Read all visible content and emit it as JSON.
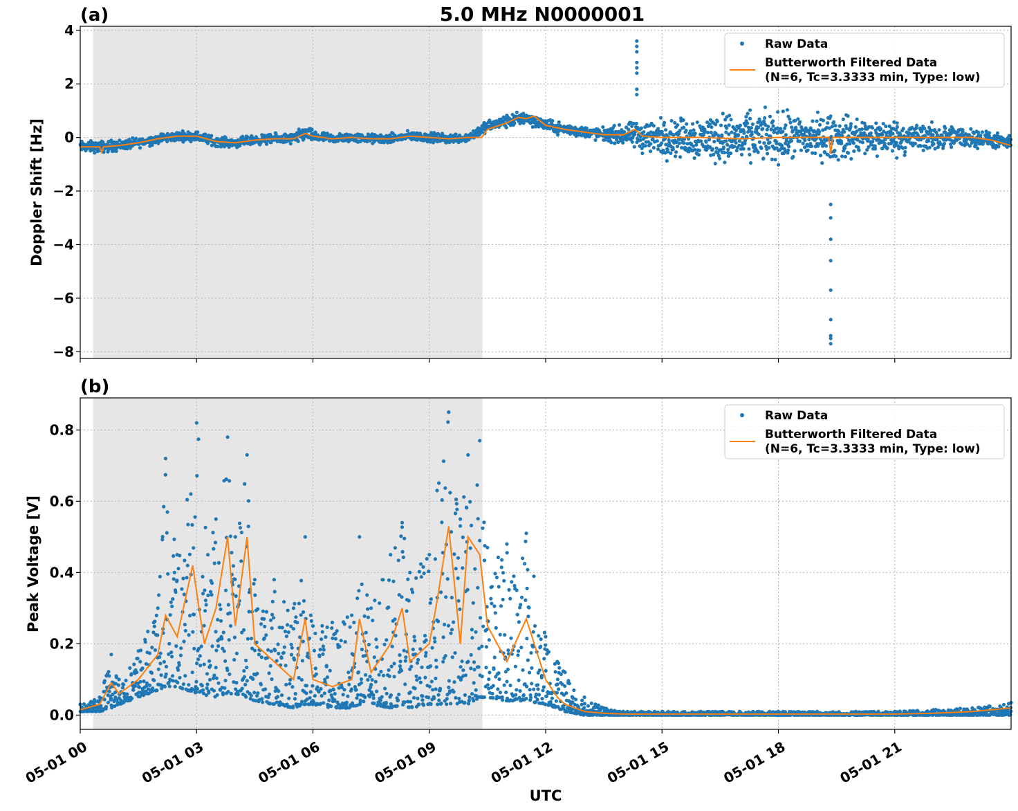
{
  "figure": {
    "title": "5.0 MHz N0000001",
    "xlabel": "UTC",
    "x_tick_labels": [
      "05-01 00",
      "05-01 03",
      "05-01 06",
      "05-01 09",
      "05-01 12",
      "05-01 15",
      "05-01 18",
      "05-01 21"
    ],
    "x_tick_hours": [
      0,
      3,
      6,
      9,
      12,
      15,
      18,
      21
    ],
    "x_range_hours": [
      0,
      24
    ],
    "colors": {
      "raw": "#1f77b4",
      "filtered": "#ff7f0e",
      "shade": "#e6e6e6",
      "grid": "#b0b0b0"
    }
  },
  "chart_data": [
    {
      "type": "scatter",
      "panel_label": "(a)",
      "ylabel": "Doppler Shift [Hz]",
      "ylim": [
        -8.25,
        4.15
      ],
      "yticks": [
        4,
        2,
        0,
        -2,
        -4,
        -6,
        -8
      ],
      "ytick_labels": [
        "4",
        "2",
        "0",
        "−2",
        "−4",
        "−6",
        "−8"
      ],
      "grid": true,
      "legend_position": "top-right",
      "shaded_x_range_hours": [
        0.33,
        10.37
      ],
      "series": [
        {
          "name": "Raw Data",
          "kind": "points",
          "x_hours": [
            0,
            0.5,
            1,
            1.5,
            2,
            2.5,
            3,
            3.5,
            4,
            4.5,
            5,
            5.5,
            5.8,
            6,
            6.5,
            7,
            7.5,
            8,
            8.5,
            9,
            9.5,
            10,
            10.4,
            10.6,
            11,
            11.5,
            12,
            12.5,
            13,
            13.5,
            14,
            14.5,
            15,
            15.5,
            16,
            16.5,
            17,
            17.5,
            18,
            18.5,
            19,
            19.5,
            20,
            20.5,
            21,
            21.5,
            22,
            22.5,
            23,
            23.5,
            24
          ],
          "y_center": [
            -0.35,
            -0.35,
            -0.3,
            -0.2,
            -0.05,
            0.05,
            0.05,
            -0.15,
            -0.2,
            -0.1,
            -0.05,
            -0.05,
            0.15,
            0.05,
            -0.05,
            0.0,
            -0.05,
            -0.05,
            0.05,
            0.0,
            -0.05,
            0.0,
            0.35,
            0.45,
            0.6,
            0.75,
            0.45,
            0.3,
            0.2,
            0.1,
            0.1,
            0.05,
            0.0,
            0.0,
            0.0,
            0.0,
            -0.05,
            0.0,
            0.0,
            0.0,
            0.0,
            0.0,
            0.0,
            0.0,
            0.0,
            0.0,
            0.0,
            0.0,
            0.0,
            -0.1,
            -0.25
          ],
          "y_spread": [
            0.3,
            0.3,
            0.3,
            0.25,
            0.25,
            0.25,
            0.25,
            0.25,
            0.25,
            0.25,
            0.25,
            0.3,
            0.4,
            0.3,
            0.25,
            0.25,
            0.25,
            0.25,
            0.25,
            0.25,
            0.25,
            0.25,
            0.3,
            0.3,
            0.35,
            0.35,
            0.3,
            0.3,
            0.3,
            0.35,
            0.5,
            0.9,
            1.0,
            1.0,
            1.2,
            1.3,
            1.3,
            1.3,
            1.3,
            1.2,
            1.2,
            1.2,
            1.1,
            1.0,
            0.9,
            0.8,
            0.7,
            0.6,
            0.5,
            0.4,
            0.35
          ],
          "outliers": [
            {
              "x_hours": 14.35,
              "y": [
                3.6,
                3.4,
                3.2,
                2.8,
                2.6,
                2.4,
                1.8,
                1.6
              ]
            },
            {
              "x_hours": 19.35,
              "y": [
                -2.5,
                -3.0,
                -3.8,
                -4.6,
                -5.7,
                -6.8,
                -7.4,
                -7.5,
                -7.7
              ]
            }
          ]
        },
        {
          "name": "Butterworth Filtered Data",
          "kind": "line",
          "x_hours": [
            0,
            0.5,
            0.55,
            0.6,
            1,
            1.5,
            2,
            2.5,
            3,
            3.5,
            4,
            4.5,
            5,
            5.5,
            5.8,
            6,
            6.5,
            7,
            7.5,
            8,
            8.5,
            9,
            9.5,
            10,
            10.35,
            10.5,
            11,
            11.3,
            11.5,
            11.7,
            12,
            12.5,
            13,
            13.5,
            14,
            14.3,
            14.5,
            15,
            16,
            17,
            18,
            19,
            19.3,
            19.35,
            19.4,
            20,
            21,
            22,
            23,
            23.5,
            24
          ],
          "y": [
            -0.35,
            -0.35,
            -0.55,
            -0.35,
            -0.3,
            -0.2,
            -0.05,
            0.05,
            0.05,
            -0.15,
            -0.2,
            -0.1,
            -0.05,
            -0.05,
            0.15,
            0.05,
            -0.05,
            0.0,
            -0.05,
            -0.05,
            0.05,
            0.0,
            -0.05,
            0.0,
            0.0,
            0.3,
            0.55,
            0.75,
            0.7,
            0.8,
            0.45,
            0.3,
            0.2,
            0.1,
            0.1,
            0.3,
            0.05,
            0.0,
            0.0,
            -0.05,
            0.0,
            0.0,
            0.0,
            -0.6,
            0.0,
            0.0,
            0.0,
            0.0,
            0.0,
            -0.1,
            -0.3
          ]
        }
      ],
      "legend": {
        "entries": [
          "Raw Data",
          "Butterworth Filtered Data"
        ],
        "subtitle": "(N=6, Tc=3.3333 min, Type: low)"
      }
    },
    {
      "type": "scatter",
      "panel_label": "(b)",
      "ylabel": "Peak Voltage [V]",
      "ylim": [
        -0.04,
        0.89
      ],
      "yticks": [
        0.8,
        0.6,
        0.4,
        0.2,
        0.0
      ],
      "ytick_labels": [
        "0.8",
        "0.6",
        "0.4",
        "0.2",
        "0.0"
      ],
      "grid": true,
      "legend_position": "top-right",
      "shaded_x_range_hours": [
        0.33,
        10.37
      ],
      "series": [
        {
          "name": "Raw Data",
          "kind": "points",
          "x_hours": [
            0,
            0.5,
            0.8,
            1,
            1.5,
            2,
            2.2,
            2.5,
            3,
            3.5,
            3.8,
            4,
            4.3,
            4.5,
            5,
            5.5,
            5.8,
            6,
            6.5,
            7,
            7.2,
            7.5,
            8,
            8.3,
            8.5,
            9,
            9.2,
            9.5,
            9.8,
            10,
            10.3,
            10.5,
            11,
            11.5,
            12,
            12.3,
            12.5,
            13,
            13.5,
            14,
            15,
            16,
            17,
            18,
            19,
            20,
            21,
            22,
            23,
            24
          ],
          "y_low": [
            0.01,
            0.01,
            0.02,
            0.03,
            0.05,
            0.07,
            0.08,
            0.08,
            0.06,
            0.05,
            0.06,
            0.06,
            0.05,
            0.04,
            0.03,
            0.02,
            0.03,
            0.03,
            0.02,
            0.02,
            0.03,
            0.03,
            0.02,
            0.03,
            0.02,
            0.03,
            0.03,
            0.03,
            0.03,
            0.03,
            0.05,
            0.05,
            0.04,
            0.04,
            0.03,
            0.02,
            0.01,
            0.0,
            0.0,
            0.0,
            0.0,
            0.0,
            0.0,
            0.0,
            0.0,
            0.0,
            0.0,
            0.0,
            0.0,
            0.0
          ],
          "y_high": [
            0.03,
            0.05,
            0.17,
            0.1,
            0.18,
            0.3,
            0.72,
            0.45,
            0.82,
            0.55,
            0.78,
            0.5,
            0.73,
            0.38,
            0.38,
            0.3,
            0.5,
            0.25,
            0.26,
            0.28,
            0.5,
            0.3,
            0.45,
            0.54,
            0.4,
            0.45,
            0.63,
            0.85,
            0.55,
            0.73,
            0.77,
            0.47,
            0.48,
            0.51,
            0.22,
            0.15,
            0.12,
            0.05,
            0.02,
            0.01,
            0.01,
            0.01,
            0.01,
            0.01,
            0.01,
            0.01,
            0.01,
            0.015,
            0.02,
            0.035
          ]
        },
        {
          "name": "Butterworth Filtered Data",
          "kind": "line",
          "x_hours": [
            0,
            0.5,
            0.8,
            1,
            1.5,
            2,
            2.2,
            2.5,
            2.9,
            3.2,
            3.5,
            3.8,
            4,
            4.3,
            4.5,
            5,
            5.5,
            5.8,
            6,
            6.5,
            7,
            7.2,
            7.5,
            8,
            8.3,
            8.5,
            9,
            9.2,
            9.5,
            9.8,
            10,
            10.3,
            10.5,
            11,
            11.5,
            12,
            12.3,
            12.5,
            13,
            13.5,
            14,
            15,
            16,
            17,
            18,
            19,
            20,
            21,
            22,
            23,
            24
          ],
          "y": [
            0.015,
            0.03,
            0.09,
            0.06,
            0.1,
            0.17,
            0.28,
            0.22,
            0.42,
            0.2,
            0.3,
            0.5,
            0.25,
            0.5,
            0.2,
            0.15,
            0.1,
            0.27,
            0.1,
            0.08,
            0.1,
            0.27,
            0.12,
            0.2,
            0.3,
            0.15,
            0.2,
            0.32,
            0.53,
            0.2,
            0.5,
            0.45,
            0.25,
            0.15,
            0.27,
            0.1,
            0.05,
            0.03,
            0.01,
            0.005,
            0.003,
            0.003,
            0.003,
            0.003,
            0.003,
            0.003,
            0.003,
            0.003,
            0.005,
            0.01,
            0.02
          ]
        }
      ],
      "legend": {
        "entries": [
          "Raw Data",
          "Butterworth Filtered Data"
        ],
        "subtitle": "(N=6, Tc=3.3333 min, Type: low)"
      }
    }
  ]
}
